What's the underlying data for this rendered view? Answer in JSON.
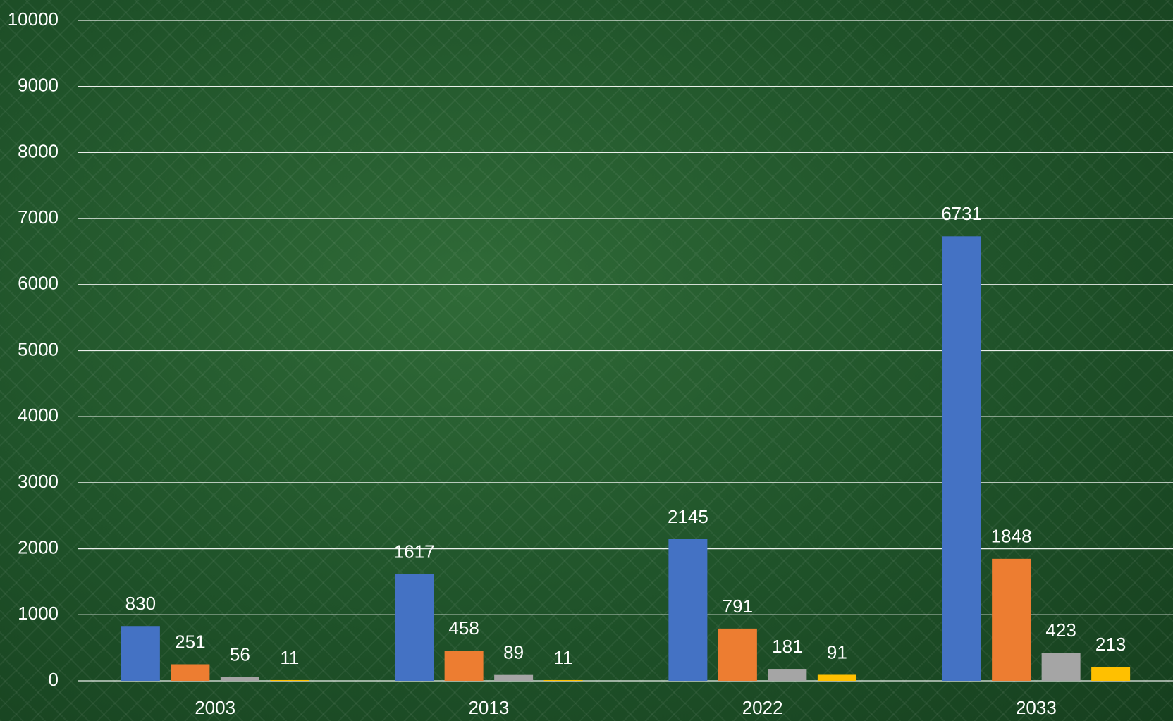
{
  "chart_data": {
    "type": "bar",
    "categories": [
      "2003",
      "2013",
      "2022",
      "2033"
    ],
    "series": [
      {
        "color": "#4472c4",
        "values": [
          830,
          1617,
          2145,
          6731
        ]
      },
      {
        "color": "#ed7d31",
        "values": [
          251,
          458,
          791,
          1848
        ]
      },
      {
        "color": "#a5a5a5",
        "values": [
          56,
          89,
          181,
          423
        ]
      },
      {
        "color": "#ffc000",
        "values": [
          11,
          11,
          91,
          213
        ]
      }
    ],
    "ylim": [
      0,
      10000
    ],
    "yticks": [
      0,
      1000,
      2000,
      3000,
      4000,
      5000,
      6000,
      7000,
      8000,
      9000,
      10000
    ],
    "grid": true
  }
}
